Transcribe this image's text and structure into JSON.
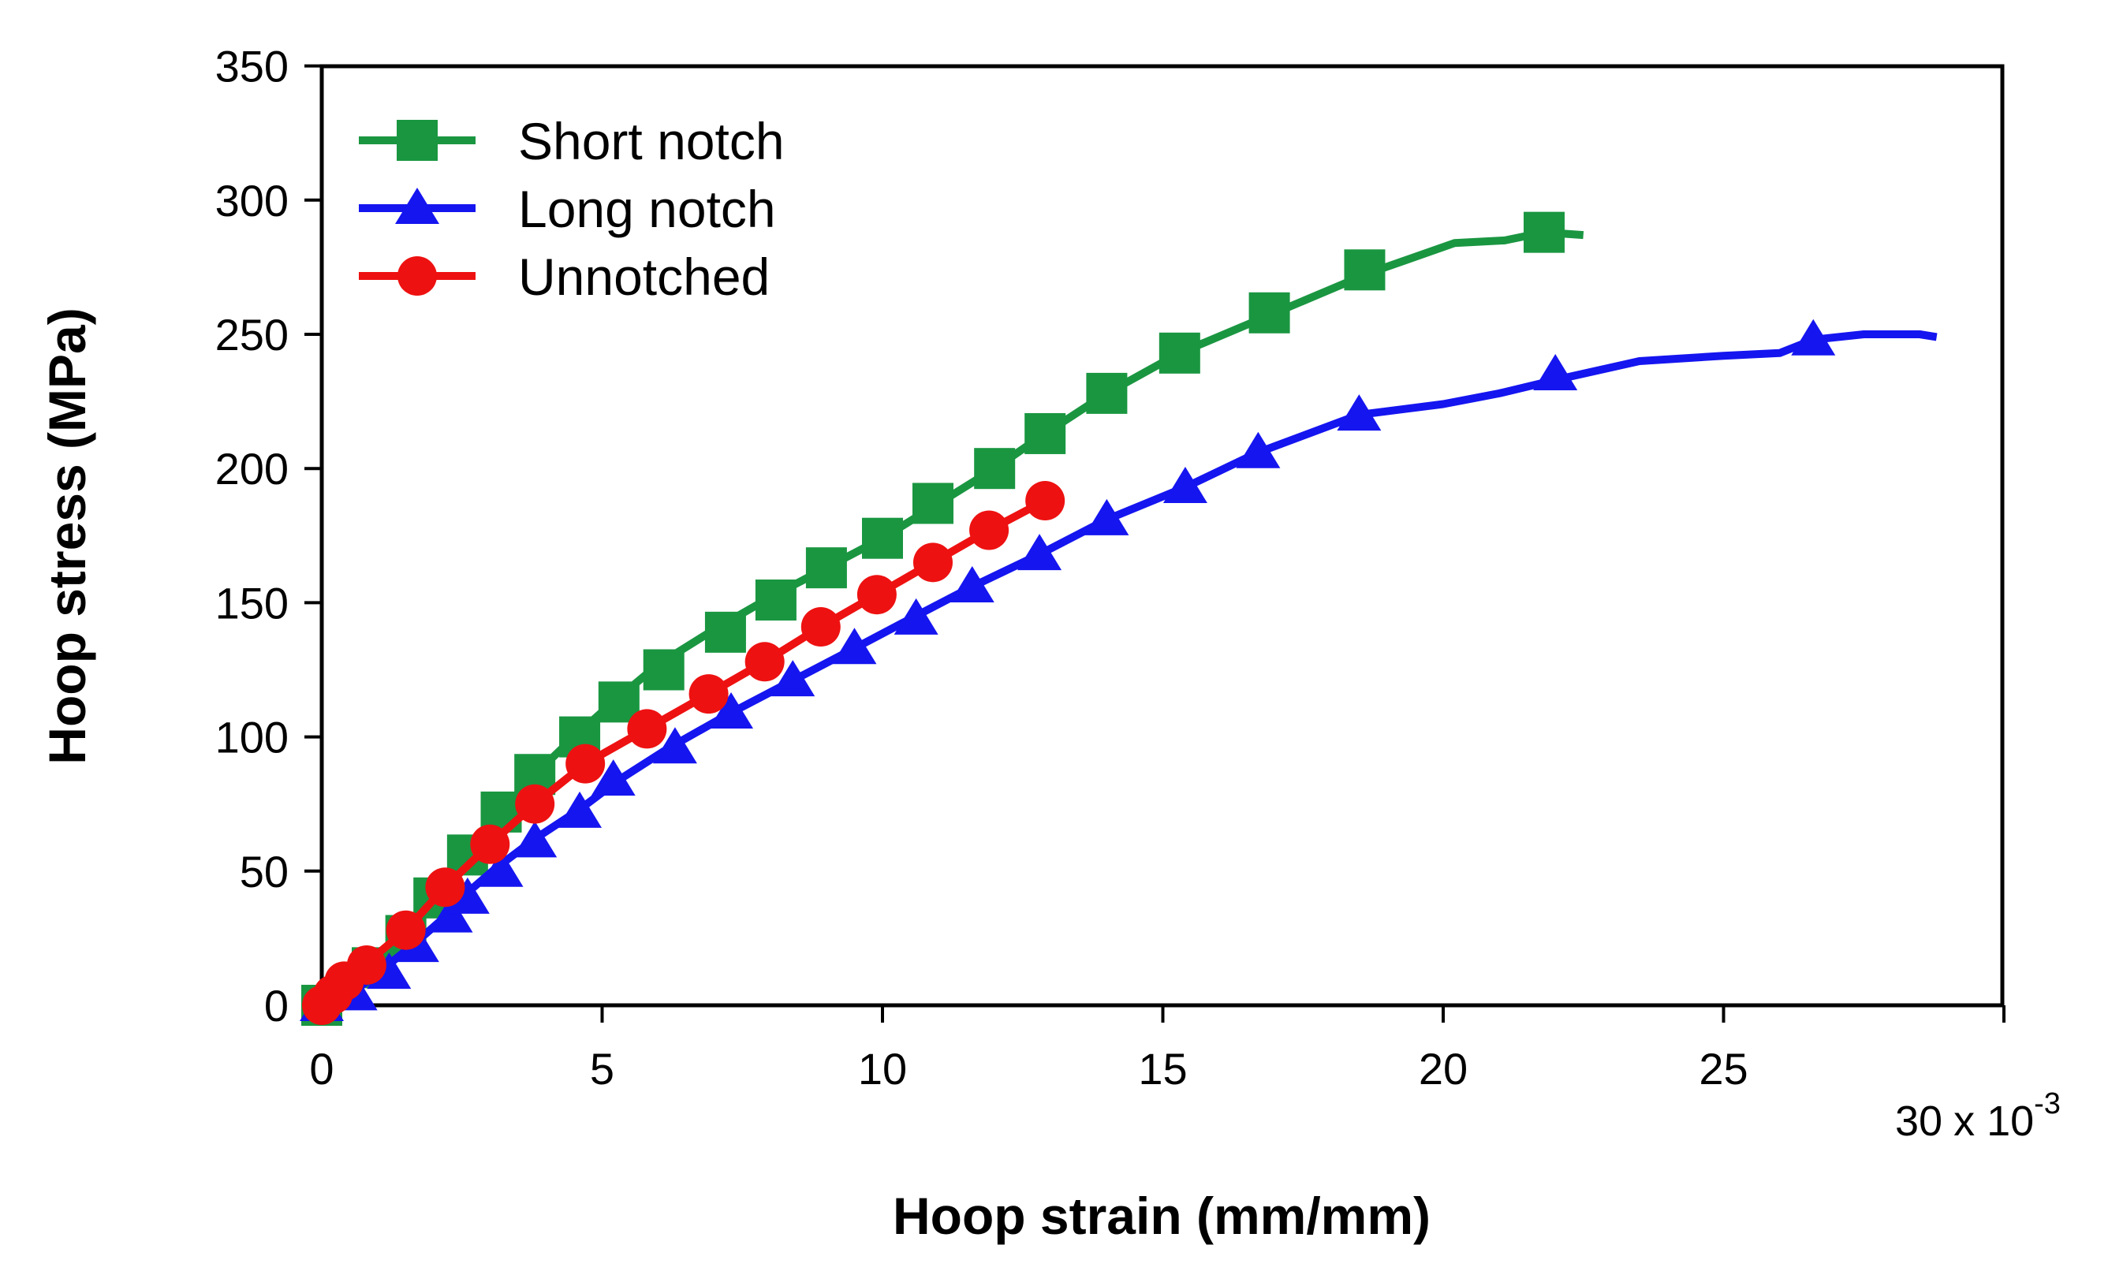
{
  "chart_data": {
    "type": "line",
    "title": "",
    "xlabel": "Hoop strain (mm/mm)",
    "ylabel": "Hoop stress (MPa)",
    "xlim": [
      0,
      30
    ],
    "ylim": [
      0,
      350
    ],
    "x_ticks": [
      0,
      5,
      10,
      15,
      20,
      25,
      30
    ],
    "x_tick_labels": [
      "0",
      "5",
      "10",
      "15",
      "20",
      "25",
      "30"
    ],
    "x_multiplier_base": "x 10",
    "x_multiplier_exp": "-3",
    "y_ticks": [
      0,
      50,
      100,
      150,
      200,
      250,
      300,
      350
    ],
    "y_tick_labels": [
      "0",
      "50",
      "100",
      "150",
      "200",
      "250",
      "300",
      "350"
    ],
    "grid": false,
    "legend_position": "top-left",
    "series": [
      {
        "name": "Short notch",
        "color": "#1a9641",
        "marker": "square",
        "line": [
          [
            0,
            0
          ],
          [
            0.4,
            6
          ],
          [
            0.9,
            14
          ],
          [
            1.5,
            26
          ],
          [
            2,
            40
          ],
          [
            2.6,
            56
          ],
          [
            3.2,
            72
          ],
          [
            3.8,
            86
          ],
          [
            4.5,
            100
          ],
          [
            5.2,
            113
          ],
          [
            6,
            127
          ],
          [
            7,
            140
          ],
          [
            8,
            152
          ],
          [
            9,
            163
          ],
          [
            10,
            174
          ],
          [
            11,
            187
          ],
          [
            12,
            200
          ],
          [
            12.9,
            213
          ],
          [
            14,
            228
          ],
          [
            15.3,
            243
          ],
          [
            17,
            258
          ],
          [
            18.7,
            273
          ],
          [
            20.2,
            284
          ],
          [
            21.1,
            285
          ],
          [
            21.8,
            288
          ],
          [
            22.5,
            287
          ]
        ],
        "markers": [
          [
            0,
            0
          ],
          [
            0.9,
            14
          ],
          [
            1.5,
            26
          ],
          [
            2,
            40
          ],
          [
            2.6,
            56
          ],
          [
            3.2,
            72
          ],
          [
            3.8,
            86
          ],
          [
            4.6,
            100
          ],
          [
            5.3,
            113
          ],
          [
            6.1,
            125
          ],
          [
            7.2,
            139
          ],
          [
            8.1,
            151
          ],
          [
            9,
            163
          ],
          [
            10,
            174
          ],
          [
            10.9,
            187
          ],
          [
            12,
            200
          ],
          [
            12.9,
            213
          ],
          [
            14,
            228
          ],
          [
            15.3,
            243
          ],
          [
            16.9,
            258
          ],
          [
            18.6,
            274
          ],
          [
            21.8,
            288
          ]
        ]
      },
      {
        "name": "Long notch",
        "color": "#1515f0",
        "marker": "triangle",
        "line": [
          [
            0,
            0
          ],
          [
            0.5,
            4
          ],
          [
            1,
            12
          ],
          [
            1.6,
            22
          ],
          [
            2.2,
            33
          ],
          [
            2.6,
            42
          ],
          [
            3.1,
            51
          ],
          [
            3.8,
            62
          ],
          [
            4.6,
            73
          ],
          [
            5.3,
            84
          ],
          [
            6.2,
            96
          ],
          [
            7.3,
            109
          ],
          [
            8.4,
            121
          ],
          [
            9.5,
            133
          ],
          [
            10.5,
            144
          ],
          [
            11.6,
            156
          ],
          [
            12.8,
            168
          ],
          [
            14,
            181
          ],
          [
            15.4,
            193
          ],
          [
            16.7,
            206
          ],
          [
            18.5,
            220
          ],
          [
            20,
            224
          ],
          [
            21,
            228
          ],
          [
            22,
            233
          ],
          [
            23.5,
            240
          ],
          [
            25,
            242
          ],
          [
            26,
            243
          ],
          [
            26.6,
            248
          ],
          [
            27.5,
            250
          ],
          [
            28.5,
            250
          ],
          [
            28.8,
            249
          ]
        ],
        "markers": [
          [
            0,
            0
          ],
          [
            0.6,
            4
          ],
          [
            1.2,
            12
          ],
          [
            1.7,
            22
          ],
          [
            2.3,
            33
          ],
          [
            2.6,
            40
          ],
          [
            3.2,
            50
          ],
          [
            3.8,
            61
          ],
          [
            4.6,
            72
          ],
          [
            5.2,
            84
          ],
          [
            6.3,
            96
          ],
          [
            7.3,
            109
          ],
          [
            8.4,
            121
          ],
          [
            9.5,
            133
          ],
          [
            10.6,
            144
          ],
          [
            11.6,
            156
          ],
          [
            12.8,
            168
          ],
          [
            14,
            181
          ],
          [
            15.4,
            193
          ],
          [
            16.7,
            206
          ],
          [
            18.5,
            220
          ],
          [
            22,
            235
          ],
          [
            26.6,
            248
          ]
        ]
      },
      {
        "name": "Unnotched",
        "color": "#ee1111",
        "marker": "circle",
        "line": [
          [
            0,
            0
          ],
          [
            0.3,
            6
          ],
          [
            0.7,
            14
          ],
          [
            1.5,
            28
          ],
          [
            2.2,
            44
          ],
          [
            3,
            60
          ],
          [
            3.8,
            75
          ],
          [
            4.7,
            90
          ],
          [
            5.8,
            103
          ],
          [
            6.9,
            116
          ],
          [
            7.9,
            128
          ],
          [
            8.9,
            141
          ],
          [
            9.9,
            153
          ],
          [
            10.9,
            165
          ],
          [
            11.9,
            177
          ],
          [
            12.9,
            188
          ],
          [
            13,
            188
          ]
        ],
        "markers": [
          [
            0,
            0
          ],
          [
            0.2,
            4
          ],
          [
            0.4,
            9
          ],
          [
            0.8,
            15
          ],
          [
            1.5,
            28
          ],
          [
            2.2,
            44
          ],
          [
            3,
            60
          ],
          [
            3.8,
            75
          ],
          [
            4.7,
            90
          ],
          [
            5.8,
            103
          ],
          [
            6.9,
            116
          ],
          [
            7.9,
            128
          ],
          [
            8.9,
            141
          ],
          [
            9.9,
            153
          ],
          [
            10.9,
            165
          ],
          [
            11.9,
            177
          ],
          [
            12.9,
            188
          ]
        ]
      }
    ]
  }
}
